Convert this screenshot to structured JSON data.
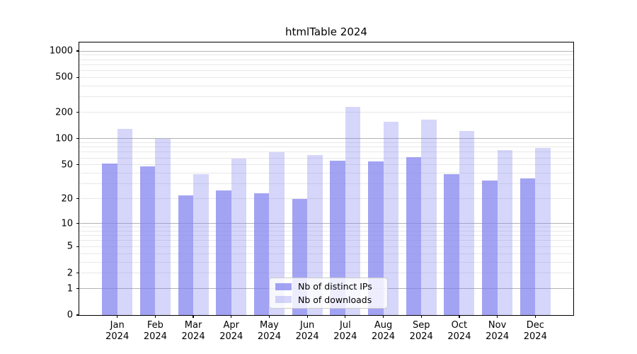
{
  "figure": {
    "title": "htmlTable 2024"
  },
  "chart_data": {
    "type": "bar",
    "title": "htmlTable 2024",
    "categories": [
      "Jan",
      "Feb",
      "Mar",
      "Apr",
      "May",
      "Jun",
      "Jul",
      "Aug",
      "Sep",
      "Oct",
      "Nov",
      "Dec"
    ],
    "category_year": "2024",
    "series": [
      {
        "name": "Nb of distinct IPs",
        "color": "rgba(128,128,238,0.72)",
        "values": [
          52,
          48,
          22,
          25,
          23,
          20,
          56,
          55,
          61,
          39,
          33,
          35
        ]
      },
      {
        "name": "Nb of downloads",
        "color": "rgba(128,128,238,0.32)",
        "values": [
          130,
          100,
          39,
          59,
          70,
          65,
          230,
          156,
          164,
          122,
          74,
          78
        ]
      }
    ],
    "yscale": "log1p",
    "ylim": [
      0,
      1250
    ],
    "y_ticks": [
      1000,
      500,
      200,
      100,
      50,
      20,
      10,
      5,
      2,
      1,
      0
    ],
    "grid": "horizontal; minor at 2-9 per decade, major at powers of 10",
    "legend_position": "lower center inside plot",
    "colors": {
      "major_grid": "#b3b3b3",
      "minor_grid": "#e8e8e8",
      "axis": "#000000"
    }
  }
}
